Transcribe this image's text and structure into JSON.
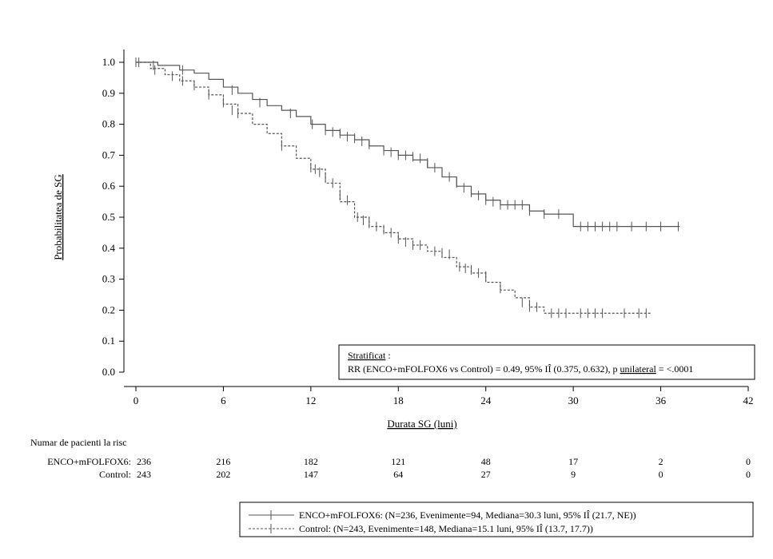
{
  "chart_data": {
    "type": "line",
    "subtype": "kaplan-meier",
    "title": "",
    "xlabel": "Durata SG (luni)",
    "ylabel": "Probabilitatea de SG",
    "xlim": [
      0,
      42
    ],
    "ylim": [
      0,
      1
    ],
    "xticks": [
      "0",
      "6",
      "12",
      "18",
      "24",
      "30",
      "36",
      "42"
    ],
    "yticks": [
      "0.0",
      "0.1",
      "0.2",
      "0.3",
      "0.4",
      "0.5",
      "0.6",
      "0.7",
      "0.8",
      "0.9",
      "1.0"
    ],
    "grid": false,
    "series": [
      {
        "name": "ENCO+mFOLFOX6",
        "line_style": "solid",
        "color": "#555555",
        "steps": [
          [
            0,
            1.0
          ],
          [
            1.5,
            0.99
          ],
          [
            3,
            0.975
          ],
          [
            4,
            0.965
          ],
          [
            5,
            0.945
          ],
          [
            6,
            0.92
          ],
          [
            7,
            0.9
          ],
          [
            8,
            0.88
          ],
          [
            9,
            0.86
          ],
          [
            10,
            0.845
          ],
          [
            11,
            0.825
          ],
          [
            12,
            0.8
          ],
          [
            13,
            0.78
          ],
          [
            14,
            0.765
          ],
          [
            15,
            0.75
          ],
          [
            16,
            0.73
          ],
          [
            17,
            0.715
          ],
          [
            18,
            0.7
          ],
          [
            19,
            0.685
          ],
          [
            20,
            0.66
          ],
          [
            21,
            0.63
          ],
          [
            22,
            0.6
          ],
          [
            23,
            0.575
          ],
          [
            24,
            0.555
          ],
          [
            25,
            0.54
          ],
          [
            27,
            0.52
          ],
          [
            28,
            0.51
          ],
          [
            30,
            0.47
          ],
          [
            37.3,
            0.47
          ]
        ],
        "censors": [
          [
            0.2,
            1.0
          ],
          [
            1.2,
            0.99
          ],
          [
            3.2,
            0.975
          ],
          [
            6.6,
            0.91
          ],
          [
            8.5,
            0.87
          ],
          [
            10.6,
            0.835
          ],
          [
            12.1,
            0.8
          ],
          [
            13,
            0.78
          ],
          [
            13.5,
            0.775
          ],
          [
            14,
            0.77
          ],
          [
            14.5,
            0.76
          ],
          [
            15,
            0.755
          ],
          [
            15.5,
            0.745
          ],
          [
            16,
            0.735
          ],
          [
            17,
            0.715
          ],
          [
            17.5,
            0.71
          ],
          [
            18,
            0.7
          ],
          [
            18.5,
            0.7
          ],
          [
            19,
            0.695
          ],
          [
            19.5,
            0.69
          ],
          [
            20,
            0.675
          ],
          [
            20.5,
            0.66
          ],
          [
            21,
            0.645
          ],
          [
            21.5,
            0.63
          ],
          [
            22,
            0.61
          ],
          [
            22.5,
            0.595
          ],
          [
            23,
            0.58
          ],
          [
            23.5,
            0.57
          ],
          [
            24,
            0.555
          ],
          [
            24.5,
            0.55
          ],
          [
            25,
            0.54
          ],
          [
            25.5,
            0.54
          ],
          [
            26,
            0.54
          ],
          [
            26.5,
            0.54
          ],
          [
            27,
            0.52
          ],
          [
            28,
            0.51
          ],
          [
            29,
            0.51
          ],
          [
            30.5,
            0.47
          ],
          [
            31,
            0.47
          ],
          [
            31.5,
            0.47
          ],
          [
            32,
            0.47
          ],
          [
            32.5,
            0.47
          ],
          [
            33,
            0.47
          ],
          [
            34,
            0.47
          ],
          [
            35,
            0.47
          ],
          [
            36,
            0.47
          ],
          [
            37.2,
            0.47
          ]
        ]
      },
      {
        "name": "Control",
        "line_style": "dashed",
        "color": "#555555",
        "steps": [
          [
            0,
            1.0
          ],
          [
            1,
            0.98
          ],
          [
            2,
            0.96
          ],
          [
            3,
            0.94
          ],
          [
            4,
            0.92
          ],
          [
            5,
            0.895
          ],
          [
            6,
            0.865
          ],
          [
            7,
            0.835
          ],
          [
            8,
            0.8
          ],
          [
            9,
            0.77
          ],
          [
            10,
            0.73
          ],
          [
            11,
            0.69
          ],
          [
            12,
            0.655
          ],
          [
            13,
            0.61
          ],
          [
            14,
            0.55
          ],
          [
            15,
            0.5
          ],
          [
            16,
            0.47
          ],
          [
            17,
            0.45
          ],
          [
            18,
            0.43
          ],
          [
            19,
            0.41
          ],
          [
            20,
            0.39
          ],
          [
            21,
            0.37
          ],
          [
            22,
            0.34
          ],
          [
            23,
            0.32
          ],
          [
            24,
            0.29
          ],
          [
            25,
            0.265
          ],
          [
            26,
            0.24
          ],
          [
            27,
            0.21
          ],
          [
            28,
            0.19
          ],
          [
            35.3,
            0.19
          ]
        ],
        "censors": [
          [
            0,
            1.0
          ],
          [
            1.3,
            0.975
          ],
          [
            2.5,
            0.955
          ],
          [
            3.2,
            0.94
          ],
          [
            4,
            0.925
          ],
          [
            5,
            0.895
          ],
          [
            6,
            0.87
          ],
          [
            6.6,
            0.845
          ],
          [
            7,
            0.835
          ],
          [
            10,
            0.73
          ],
          [
            12,
            0.66
          ],
          [
            12.3,
            0.655
          ],
          [
            12.6,
            0.645
          ],
          [
            13,
            0.63
          ],
          [
            13.5,
            0.61
          ],
          [
            14,
            0.57
          ],
          [
            14.5,
            0.555
          ],
          [
            15.2,
            0.5
          ],
          [
            15.6,
            0.49
          ],
          [
            16,
            0.48
          ],
          [
            16.5,
            0.47
          ],
          [
            17,
            0.46
          ],
          [
            17.5,
            0.45
          ],
          [
            18,
            0.43
          ],
          [
            18.5,
            0.42
          ],
          [
            19,
            0.41
          ],
          [
            19.5,
            0.41
          ],
          [
            20.5,
            0.39
          ],
          [
            21,
            0.385
          ],
          [
            21.5,
            0.38
          ],
          [
            22.2,
            0.34
          ],
          [
            22.6,
            0.335
          ],
          [
            23,
            0.33
          ],
          [
            23.5,
            0.32
          ],
          [
            24,
            0.31
          ],
          [
            25,
            0.27
          ],
          [
            26.5,
            0.225
          ],
          [
            27,
            0.21
          ],
          [
            27.5,
            0.21
          ],
          [
            28.5,
            0.19
          ],
          [
            29,
            0.19
          ],
          [
            29.5,
            0.19
          ],
          [
            30.5,
            0.19
          ],
          [
            31,
            0.19
          ],
          [
            31.5,
            0.19
          ],
          [
            32,
            0.19
          ],
          [
            33.5,
            0.19
          ],
          [
            34.5,
            0.19
          ],
          [
            35,
            0.19
          ]
        ]
      }
    ]
  },
  "stats_box": {
    "line1_a": "Stratificat",
    "line1_b": " :",
    "line2_a": "RR (ENCO+mFOLFOX6 vs Control) = 0.49, 95% IÎ (0.375, 0.632), p ",
    "line2_b": "unilateral",
    "line2_c": " = <.0001"
  },
  "risk_table": {
    "title": "Numar de pacienti la risc",
    "rows": [
      {
        "label": "ENCO+mFOLFOX6:",
        "values": [
          "236",
          "216",
          "182",
          "121",
          "48",
          "17",
          "2",
          "0"
        ]
      },
      {
        "label": "Control:",
        "values": [
          "243",
          "202",
          "147",
          "64",
          "27",
          "9",
          "0",
          "0"
        ]
      }
    ]
  },
  "legend": {
    "items": [
      "ENCO+mFOLFOX6: (N=236, Evenimente=94, Mediana=30.3 luni, 95% IÎ (21.7, NE))",
      "Control: (N=243, Evenimente=148, Mediana=15.1 luni, 95% IÎ (13.7, 17.7))"
    ]
  }
}
